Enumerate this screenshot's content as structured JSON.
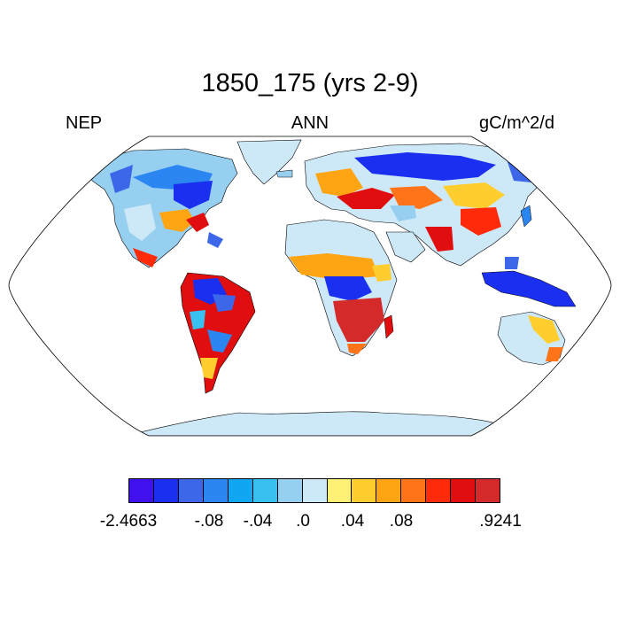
{
  "title": "1850_175 (yrs 2-9)",
  "left_label": "NEP",
  "center_label": "ANN",
  "right_label": "gC/m^2/d",
  "colorbar": {
    "colors": [
      "#4010ee",
      "#1a2ff0",
      "#3b67e8",
      "#2c86f2",
      "#10a6f2",
      "#38c0f0",
      "#96cff0",
      "#cde8f7",
      "#fff176",
      "#ffce2e",
      "#ffa412",
      "#ff7418",
      "#ff2a0a",
      "#e00e0e",
      "#d42a2a"
    ],
    "labels": [
      "-2.4663",
      "-.08",
      "-.04",
      ".0",
      ".04",
      ".08",
      ".9241"
    ]
  },
  "colors": {
    "ocean": "#ffffff",
    "land_neutral": "#cde8f7",
    "antarctica": "#cde8f7",
    "outline": "#000000"
  }
}
